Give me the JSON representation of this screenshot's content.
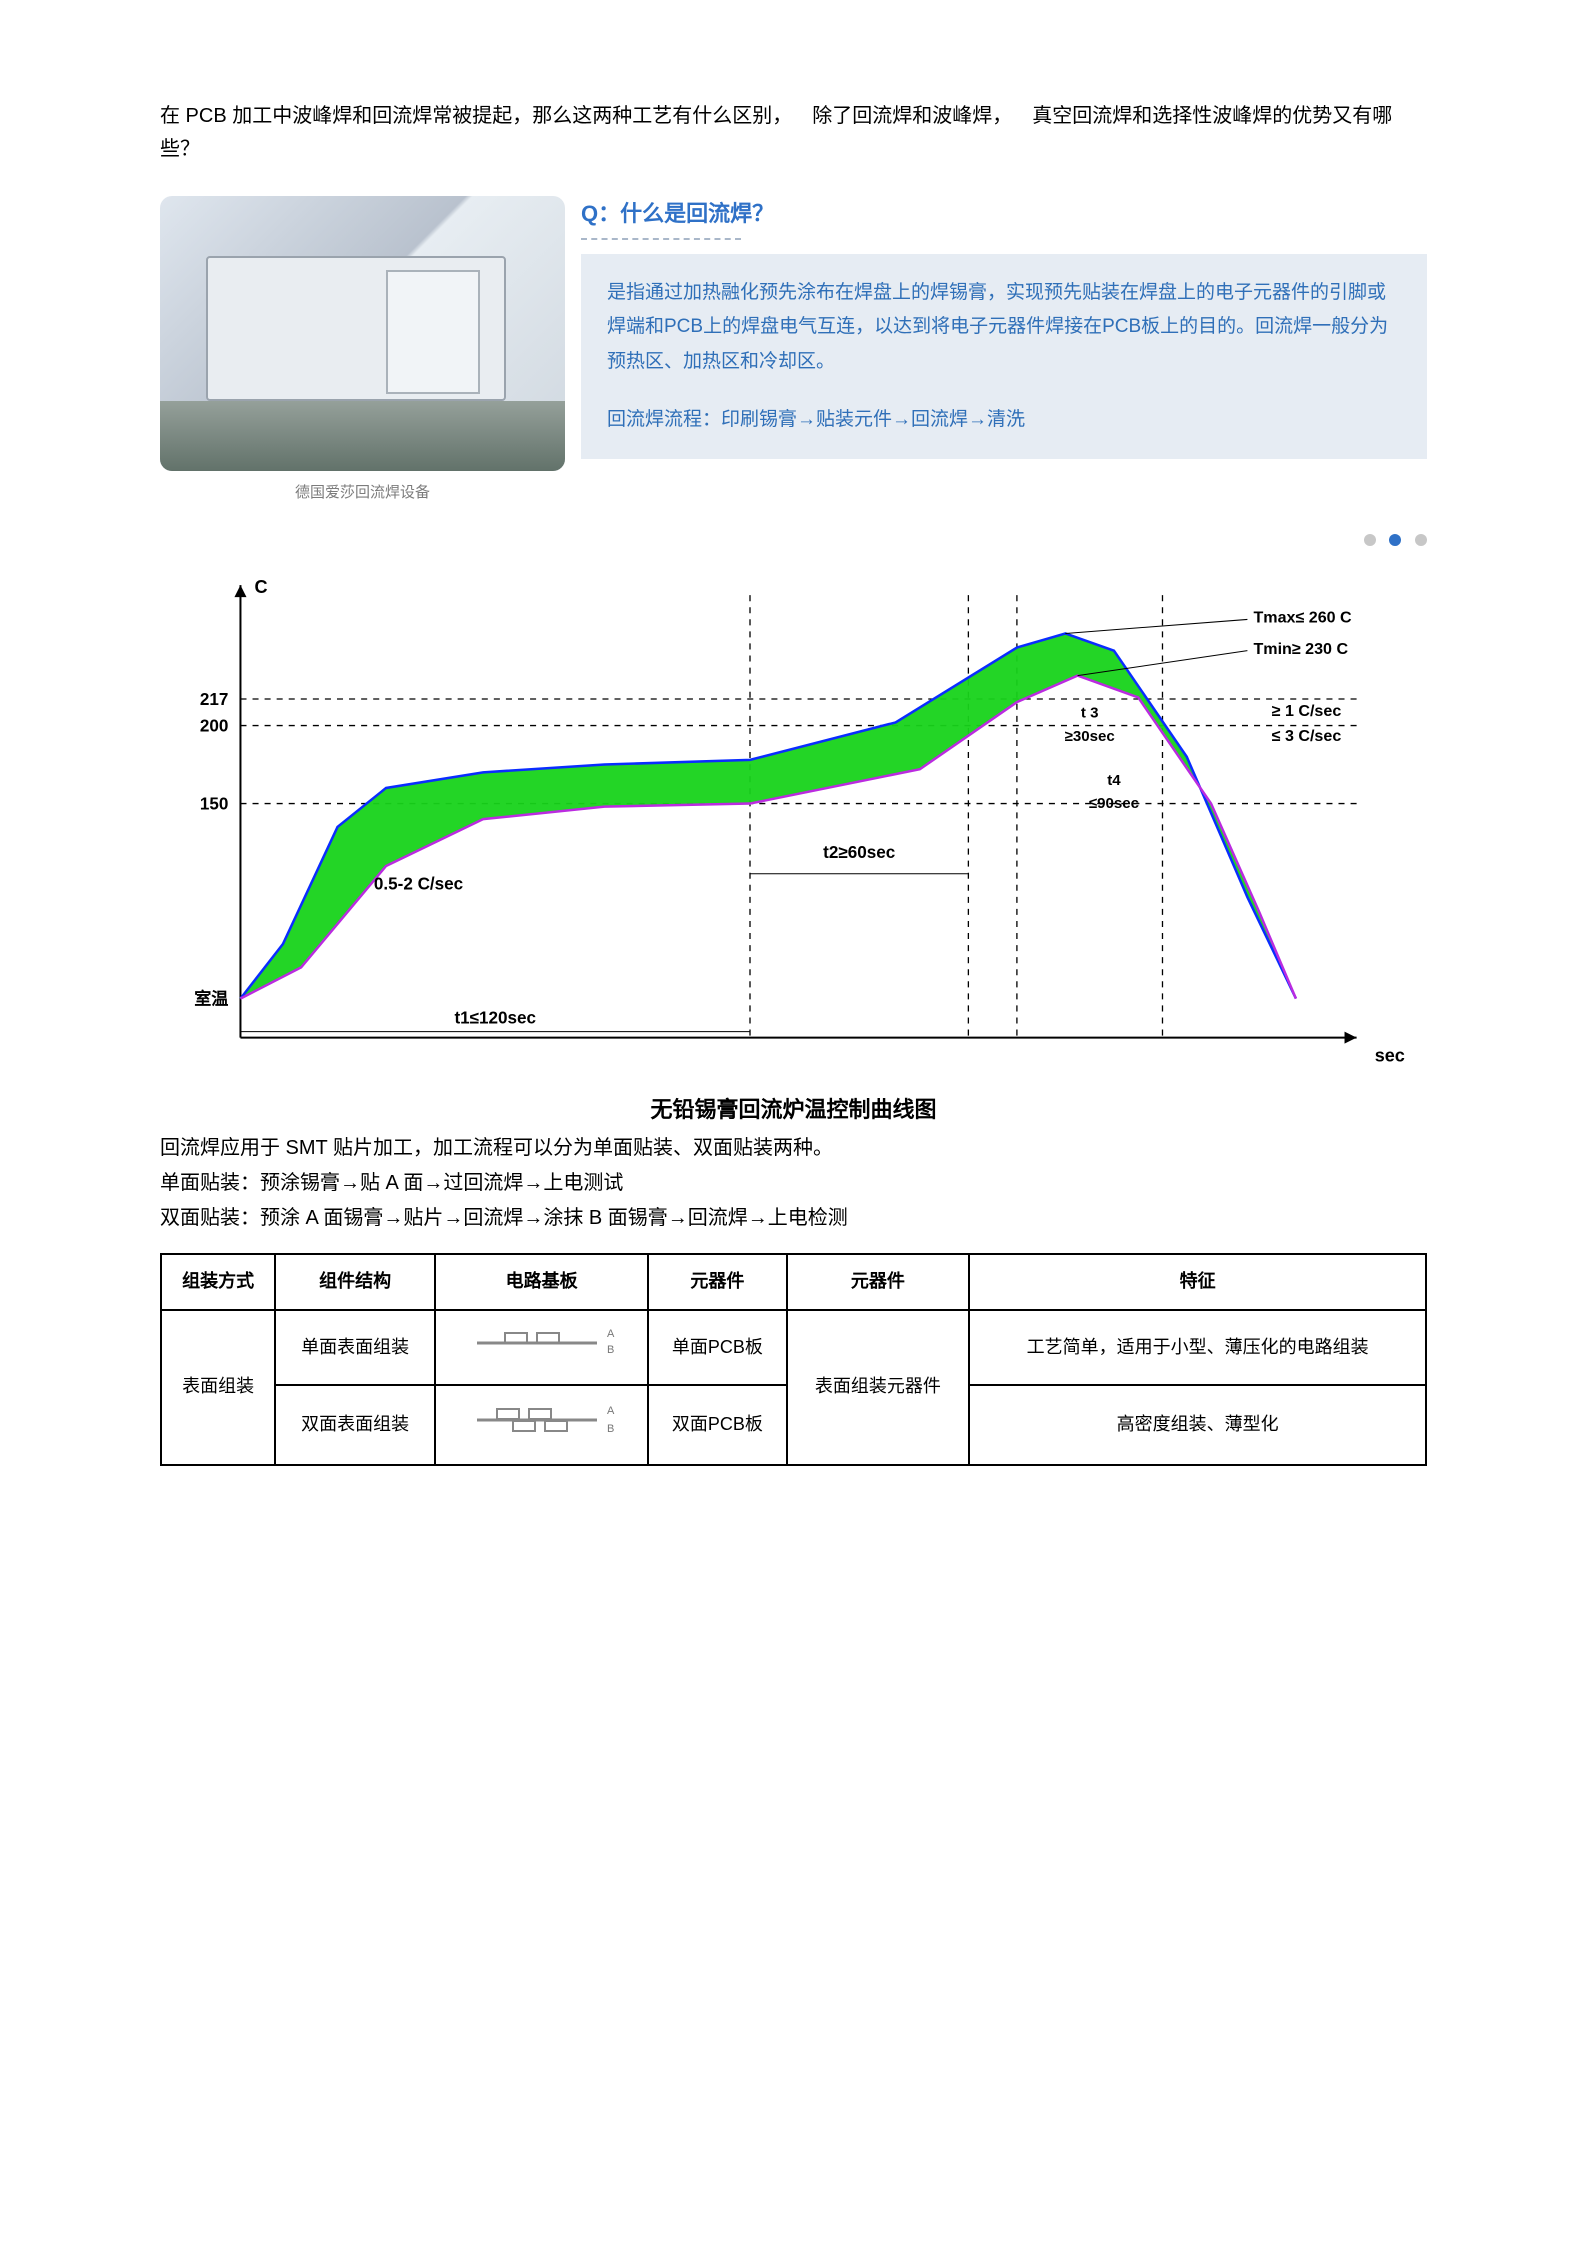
{
  "intro": "在 PCB 加工中波峰焊和回流焊常被提起，那么这两种工艺有什么区别， 除了回流焊和波峰焊， 真空回流焊和选择性波峰焊的优势又有哪些？",
  "photo_caption": "德国爱莎回流焊设备",
  "qa": {
    "title": "Q：什么是回流焊？",
    "desc": "是指通过加热融化预先涂布在焊盘上的焊锡膏，实现预先贴装在焊盘上的电子元器件的引脚或焊端和PCB上的焊盘电气互连，以达到将电子元器件焊接在PCB板上的目的。回流焊一般分为预热区、加热区和冷却区。",
    "flow": "回流焊流程：印刷锡膏→贴装元件→回流焊→清洗"
  },
  "dots_active_index": 1,
  "chart": {
    "title": "无铅锡膏回流炉温控制曲线图",
    "x_axis_label": "sec",
    "y_axis_label": "C",
    "y_ticks": [
      {
        "v": 25,
        "label": "室温"
      },
      {
        "v": 150,
        "label": "150"
      },
      {
        "v": 200,
        "label": "200"
      },
      {
        "v": 217,
        "label": "217"
      }
    ],
    "fill_color": "#17d31a",
    "upper_curve_color": "#0a2cff",
    "lower_curve_color": "#bb2be0",
    "axis_color": "#000000",
    "grid_dash": "6 6",
    "annotations": {
      "rate_up": "0.5-2 C/sec",
      "t1": "t1≤120sec",
      "t2": "t2≥60sec",
      "t3_a": "t 3",
      "t3_b": "≥30sec",
      "t4_a": "t4",
      "t4_b": "≤90sec",
      "tmax": "Tmax≤ 260 C",
      "tmin": "Tmin≥ 230 C",
      "cool_a": "≥ 1 C/sec",
      "cool_b": "≤ 3 C/sec"
    },
    "upper_pts": [
      [
        0,
        25
      ],
      [
        35,
        60
      ],
      [
        80,
        135
      ],
      [
        120,
        160
      ],
      [
        200,
        170
      ],
      [
        300,
        175
      ],
      [
        420,
        178
      ],
      [
        540,
        202
      ],
      [
        640,
        250
      ],
      [
        680,
        259
      ],
      [
        720,
        248
      ],
      [
        780,
        180
      ],
      [
        830,
        90
      ],
      [
        870,
        25
      ]
    ],
    "lower_pts": [
      [
        0,
        25
      ],
      [
        50,
        45
      ],
      [
        120,
        110
      ],
      [
        200,
        140
      ],
      [
        300,
        148
      ],
      [
        420,
        150
      ],
      [
        560,
        172
      ],
      [
        640,
        215
      ],
      [
        690,
        232
      ],
      [
        740,
        218
      ],
      [
        800,
        150
      ],
      [
        840,
        80
      ],
      [
        870,
        25
      ]
    ],
    "x_range": [
      0,
      920
    ],
    "y_range": [
      0,
      290
    ],
    "vlines": [
      420,
      600,
      640,
      760
    ],
    "hlines": [
      150,
      200,
      217
    ]
  },
  "body": {
    "l1": "回流焊应用于 SMT 贴片加工，加工流程可以分为单面贴装、双面贴装两种。",
    "l2": "单面贴装：预涂锡膏→贴 A 面→过回流焊→上电测试",
    "l3": "双面贴装：预涂 A 面锡膏→贴片→回流焊→涂抹 B 面锡膏→回流焊→上电检测"
  },
  "table": {
    "headers": [
      "组装方式",
      "组件结构",
      "电路基板",
      "元器件",
      "元器件",
      "特征"
    ],
    "col0": "表面组装",
    "col4": "表面组装元器件",
    "rows": [
      {
        "c1": "单面表面组装",
        "c3": "单面PCB板",
        "c5": "工艺简单，适用于小型、薄压化的电路组装",
        "diagram": "single"
      },
      {
        "c1": "双面表面组装",
        "c3": "双面PCB板",
        "c5": "高密度组装、薄型化",
        "diagram": "double"
      }
    ]
  }
}
